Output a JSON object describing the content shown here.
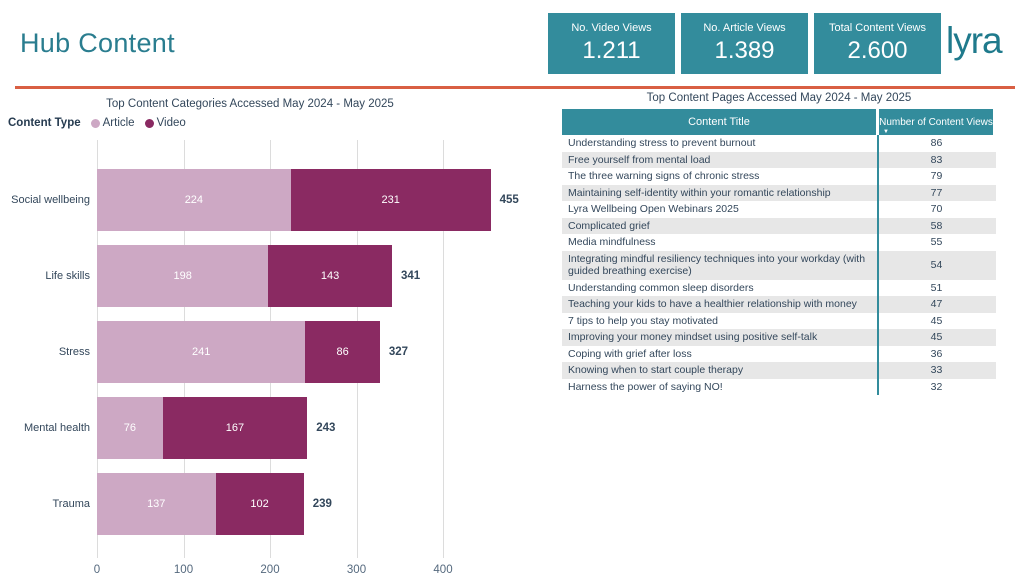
{
  "header": {
    "title": "Hub Content",
    "logo_text": "lyra",
    "kpis": [
      {
        "label": "No. Video Views",
        "value": "1.211"
      },
      {
        "label": "No. Article Views",
        "value": "1.389"
      },
      {
        "label": "Total Content Views",
        "value": "2.600"
      }
    ]
  },
  "colors": {
    "teal": "#338C9C",
    "brand_teal": "#2A7D8F",
    "orange_divider": "#D95F43",
    "navy_text": "#33475B",
    "article_pink": "#CDA8C4",
    "video_maroon": "#8A2A62",
    "row_alt_gray": "#E7E7E7",
    "gridline_gray": "#DCDCDC"
  },
  "chart_data": {
    "type": "bar",
    "orientation": "horizontal",
    "stacked": true,
    "title": "Top Content Categories Accessed May 2024 - May 2025",
    "legend_title": "Content Type",
    "legend_position": "top-left",
    "grid": true,
    "categories": [
      "Social wellbeing",
      "Life skills",
      "Stress",
      "Mental health",
      "Trauma"
    ],
    "series": [
      {
        "name": "Article",
        "color": "#CDA8C4",
        "values": [
          224,
          198,
          241,
          76,
          137
        ]
      },
      {
        "name": "Video",
        "color": "#8A2A62",
        "values": [
          231,
          143,
          86,
          167,
          102
        ]
      }
    ],
    "totals": [
      455,
      341,
      327,
      243,
      239
    ],
    "xlabel": "",
    "ylabel": "",
    "x_ticks": [
      0,
      100,
      200,
      300,
      400
    ],
    "xlim": [
      0,
      470
    ]
  },
  "table": {
    "title": "Top Content Pages Accessed May 2024 - May 2025",
    "columns": [
      "Content Title",
      "Number of Content Views"
    ],
    "sort_indicator": "desc",
    "rows": [
      {
        "title": "Understanding stress to prevent burnout",
        "views": "86"
      },
      {
        "title": "Free yourself from mental load",
        "views": "83"
      },
      {
        "title": "The three warning signs of chronic stress",
        "views": "79"
      },
      {
        "title": "Maintaining self-identity within your romantic relationship",
        "views": "77"
      },
      {
        "title": "Lyra Wellbeing Open Webinars 2025",
        "views": "70"
      },
      {
        "title": "Complicated grief",
        "views": "58"
      },
      {
        "title": "Media mindfulness",
        "views": "55"
      },
      {
        "title": "Integrating mindful resiliency techniques into your workday (with guided breathing exercise)",
        "views": "54"
      },
      {
        "title": "Understanding common sleep disorders",
        "views": "51"
      },
      {
        "title": "Teaching your kids to have a healthier relationship with money",
        "views": "47"
      },
      {
        "title": "7 tips to help you stay motivated",
        "views": "45"
      },
      {
        "title": "Improving your money mindset using positive self-talk",
        "views": "45"
      },
      {
        "title": "Coping with grief after loss",
        "views": "36"
      },
      {
        "title": "Knowing when to start couple therapy",
        "views": "33"
      },
      {
        "title": "Harness the power of saying NO!",
        "views": "32"
      }
    ]
  }
}
